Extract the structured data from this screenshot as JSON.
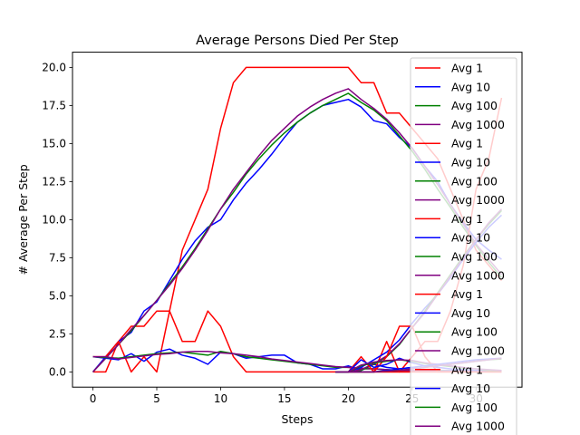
{
  "chart_data": {
    "type": "line",
    "title": "Average Persons Died Per Step",
    "xlabel": "Steps",
    "ylabel": "# Average Per Step",
    "xlim": [
      -1.6,
      33.6
    ],
    "ylim": [
      -1.0,
      21.0
    ],
    "xticks": [
      0,
      5,
      10,
      15,
      20,
      25,
      30
    ],
    "xtick_labels": [
      "0",
      "5",
      "10",
      "15",
      "20",
      "25",
      "30"
    ],
    "yticks": [
      0,
      2.5,
      5,
      7.5,
      10,
      12.5,
      15,
      17.5,
      20
    ],
    "ytick_labels": [
      "0.0",
      "2.5",
      "5.0",
      "7.5",
      "10.0",
      "12.5",
      "15.0",
      "17.5",
      "20.0"
    ],
    "grid": false,
    "legend_position": "top-right",
    "legend": [
      {
        "label": "Avg 1",
        "color": "#ff0000"
      },
      {
        "label": "Avg 10",
        "color": "#0000ff"
      },
      {
        "label": "Avg 100",
        "color": "#008000"
      },
      {
        "label": "Avg 1000",
        "color": "#800080"
      },
      {
        "label": "Avg 1",
        "color": "#ff0000"
      },
      {
        "label": "Avg 10",
        "color": "#0000ff"
      },
      {
        "label": "Avg 100",
        "color": "#008000"
      },
      {
        "label": "Avg 1000",
        "color": "#800080"
      },
      {
        "label": "Avg 1",
        "color": "#ff0000"
      },
      {
        "label": "Avg 10",
        "color": "#0000ff"
      },
      {
        "label": "Avg 100",
        "color": "#008000"
      },
      {
        "label": "Avg 1000",
        "color": "#800080"
      },
      {
        "label": "Avg 1",
        "color": "#ff0000"
      },
      {
        "label": "Avg 10",
        "color": "#0000ff"
      },
      {
        "label": "Avg 100",
        "color": "#008000"
      },
      {
        "label": "Avg 1000",
        "color": "#800080"
      },
      {
        "label": "Avg 1",
        "color": "#ff0000"
      },
      {
        "label": "Avg 10",
        "color": "#0000ff"
      },
      {
        "label": "Avg 100",
        "color": "#008000"
      },
      {
        "label": "Avg 1000",
        "color": "#800080"
      }
    ],
    "series": [
      {
        "color": "#ff0000",
        "x": [
          0,
          1,
          2,
          3,
          4,
          5,
          6,
          7,
          8,
          9,
          10,
          11,
          12,
          13,
          14,
          15,
          16,
          17,
          18,
          19,
          20,
          21,
          22,
          23,
          24,
          25,
          26,
          27,
          28,
          29,
          30,
          31,
          32
        ],
        "y": [
          0,
          0,
          2,
          3,
          3,
          4,
          4,
          8,
          10,
          12,
          16,
          19,
          20,
          20,
          20,
          20,
          20,
          20,
          20,
          20,
          20,
          19,
          19,
          17,
          17,
          16,
          15,
          14,
          12,
          10,
          8,
          7,
          6
        ]
      },
      {
        "color": "#0000ff",
        "x": [
          0,
          1,
          2,
          3,
          4,
          5,
          6,
          7,
          8,
          9,
          10,
          11,
          12,
          13,
          14,
          15,
          16,
          17,
          18,
          19,
          20,
          21,
          22,
          23,
          24,
          25,
          26,
          27,
          28,
          29,
          30,
          31,
          32
        ],
        "y": [
          0,
          1,
          2,
          2.6,
          4,
          4.6,
          6,
          7.4,
          8.6,
          9.5,
          10,
          11.3,
          12.4,
          13.3,
          14.3,
          15.4,
          16.4,
          17,
          17.5,
          17.7,
          17.9,
          17.4,
          16.5,
          16.3,
          15.4,
          14.7,
          13.5,
          12.5,
          11,
          9.8,
          8.7,
          8,
          7.4
        ]
      },
      {
        "color": "#008000",
        "x": [
          0,
          1,
          2,
          3,
          4,
          5,
          6,
          7,
          8,
          9,
          10,
          11,
          12,
          13,
          14,
          15,
          16,
          17,
          18,
          19,
          20,
          21,
          22,
          23,
          24,
          25,
          26,
          27,
          28,
          29,
          30,
          31,
          32
        ],
        "y": [
          0,
          0.9,
          1.8,
          2.7,
          3.7,
          4.7,
          5.8,
          6.9,
          8.1,
          9.4,
          10.7,
          11.8,
          13,
          14,
          14.9,
          15.7,
          16.4,
          17,
          17.5,
          17.9,
          18.3,
          17.7,
          17.2,
          16.5,
          15.5,
          14.5,
          13.3,
          12,
          10.8,
          9.5,
          8.3,
          7.2,
          6.2
        ]
      },
      {
        "color": "#800080",
        "x": [
          0,
          1,
          2,
          3,
          4,
          5,
          6,
          7,
          8,
          9,
          10,
          11,
          12,
          13,
          14,
          15,
          16,
          17,
          18,
          19,
          20,
          21,
          22,
          23,
          24,
          25,
          26,
          27,
          28,
          29,
          30,
          31,
          32
        ],
        "y": [
          0,
          0.9,
          1.8,
          2.8,
          3.7,
          4.7,
          5.7,
          6.8,
          8,
          9.3,
          10.7,
          12,
          13.1,
          14.2,
          15.2,
          16,
          16.8,
          17.4,
          17.9,
          18.3,
          18.6,
          17.9,
          17.3,
          16.6,
          15.7,
          14.7,
          13.5,
          12.3,
          11,
          9.7,
          8.4,
          7.4,
          6.4
        ]
      },
      {
        "color": "#ff0000",
        "x": [
          0,
          1,
          2,
          3,
          4,
          5,
          6,
          7,
          8,
          9,
          10,
          11,
          12,
          13,
          14,
          15,
          16,
          17,
          18,
          19,
          20,
          21,
          22,
          23,
          24,
          25,
          26,
          27,
          28,
          29,
          30,
          31,
          32
        ],
        "y": [
          1,
          1,
          2,
          0,
          1,
          0,
          4,
          2,
          2,
          4,
          3,
          1,
          0,
          0,
          0,
          0,
          0,
          0,
          0,
          0,
          0,
          0,
          0,
          0,
          0,
          0,
          0,
          0,
          0,
          0,
          0,
          0,
          0
        ]
      },
      {
        "color": "#0000ff",
        "x": [
          0,
          1,
          2,
          3,
          4,
          5,
          6,
          7,
          8,
          9,
          10,
          11,
          12,
          13,
          14,
          15,
          16,
          17,
          18,
          19,
          20,
          21,
          22,
          23,
          24,
          25,
          26,
          27,
          28,
          29,
          30,
          31,
          32
        ],
        "y": [
          1,
          0.9,
          0.8,
          1.2,
          0.7,
          1.3,
          1.5,
          1.1,
          0.9,
          0.5,
          1.3,
          1.2,
          0.9,
          1,
          1.1,
          1.1,
          0.6,
          0.5,
          0.2,
          0.2,
          0.4,
          0.1,
          0.5,
          0.3,
          0.2,
          0.3,
          0.1,
          0.1,
          0.1,
          0.1,
          0.1,
          0.1,
          0
        ]
      },
      {
        "color": "#008000",
        "x": [
          0,
          1,
          2,
          3,
          4,
          5,
          6,
          7,
          8,
          9,
          10,
          11,
          12,
          13,
          14,
          15,
          16,
          17,
          18,
          19,
          20,
          21,
          22,
          23,
          24,
          25,
          26,
          27,
          28,
          29,
          30,
          31,
          32
        ],
        "y": [
          1,
          0.95,
          0.9,
          1,
          1.1,
          1.2,
          1.25,
          1.3,
          1.2,
          1.1,
          1.35,
          1.2,
          1,
          0.9,
          0.8,
          0.7,
          0.6,
          0.5,
          0.4,
          0.3,
          0.3,
          0.2,
          0.2,
          0.15,
          0.1,
          0.1,
          0.1,
          0.1,
          0.05,
          0.05,
          0.05,
          0.05,
          0.05
        ]
      },
      {
        "color": "#800080",
        "x": [
          0,
          1,
          2,
          3,
          4,
          5,
          6,
          7,
          8,
          9,
          10,
          11,
          12,
          13,
          14,
          15,
          16,
          17,
          18,
          19,
          20,
          21,
          22,
          23,
          24,
          25,
          26,
          27,
          28,
          29,
          30,
          31,
          32
        ],
        "y": [
          1,
          1,
          0.85,
          0.95,
          1.05,
          1.15,
          1.2,
          1.3,
          1.35,
          1.35,
          1.25,
          1.2,
          1.1,
          1,
          0.85,
          0.75,
          0.65,
          0.55,
          0.45,
          0.35,
          0.3,
          0.25,
          0.2,
          0.15,
          0.1,
          0.1,
          0.1,
          0.05,
          0.05,
          0.05,
          0.05,
          0.05,
          0.05
        ]
      },
      {
        "color": "#ff0000",
        "x": [
          19,
          20,
          21,
          22,
          23,
          24,
          25,
          26,
          27,
          28,
          29,
          30,
          31,
          32
        ],
        "y": [
          0,
          0,
          0,
          0,
          2,
          0,
          1,
          2,
          2,
          4,
          7,
          12,
          14,
          18
        ]
      },
      {
        "color": "#0000ff",
        "x": [
          19,
          20,
          21,
          22,
          23,
          24,
          25,
          26,
          27,
          28,
          29,
          30,
          31,
          32
        ],
        "y": [
          0,
          0,
          0.3,
          0.8,
          1.3,
          2.1,
          3.2,
          4.2,
          5.1,
          6.2,
          7.4,
          8.5,
          9.5,
          10.3
        ]
      },
      {
        "color": "#008000",
        "x": [
          19,
          20,
          21,
          22,
          23,
          24,
          25,
          26,
          27,
          28,
          29,
          30,
          31,
          32
        ],
        "y": [
          0,
          0,
          0.1,
          0.5,
          1,
          1.8,
          2.9,
          4,
          5.2,
          6.4,
          7.6,
          8.7,
          9.7,
          10.6
        ]
      },
      {
        "color": "#800080",
        "x": [
          19,
          20,
          21,
          22,
          23,
          24,
          25,
          26,
          27,
          28,
          29,
          30,
          31,
          32
        ],
        "y": [
          0,
          0,
          0.15,
          0.55,
          1.05,
          1.85,
          2.9,
          3.9,
          5.1,
          6.3,
          7.5,
          8.7,
          9.8,
          10.7
        ]
      },
      {
        "color": "#ff0000",
        "x": [
          19,
          20,
          21,
          22,
          23,
          24,
          25,
          26,
          27,
          28,
          29,
          30,
          31,
          32
        ],
        "y": [
          0,
          0,
          1,
          0,
          1,
          3,
          3,
          1,
          0,
          0,
          0,
          0,
          0,
          0
        ]
      },
      {
        "color": "#0000ff",
        "x": [
          19,
          20,
          21,
          22,
          23,
          24,
          25,
          26,
          27,
          28,
          29,
          30,
          31,
          32
        ],
        "y": [
          0,
          0,
          0.8,
          0.3,
          0.5,
          0.9,
          0.6,
          0.4,
          0.3,
          0.2,
          0.15,
          0.1,
          0.1,
          0
        ]
      },
      {
        "color": "#008000",
        "x": [
          19,
          20,
          21,
          22,
          23,
          24,
          25,
          26,
          27,
          28,
          29,
          30,
          31,
          32
        ],
        "y": [
          0,
          0,
          0.4,
          0.6,
          0.7,
          0.8,
          0.7,
          0.55,
          0.45,
          0.35,
          0.25,
          0.2,
          0.1,
          0.1
        ]
      },
      {
        "color": "#800080",
        "x": [
          19,
          20,
          21,
          22,
          23,
          24,
          25,
          26,
          27,
          28,
          29,
          30,
          31,
          32
        ],
        "y": [
          0,
          0,
          0.45,
          0.65,
          0.75,
          0.8,
          0.75,
          0.6,
          0.5,
          0.4,
          0.3,
          0.2,
          0.15,
          0.1
        ]
      },
      {
        "color": "#ff0000",
        "x": [
          19,
          20,
          21,
          22,
          23,
          24,
          25,
          26,
          27,
          28,
          29,
          30,
          31,
          32
        ],
        "y": [
          0,
          0,
          0,
          0,
          0,
          0,
          0,
          0,
          0,
          0,
          0,
          0,
          0,
          0
        ]
      },
      {
        "color": "#0000ff",
        "x": [
          19,
          20,
          21,
          22,
          23,
          24,
          25,
          26,
          27,
          28,
          29,
          30,
          31,
          32
        ],
        "y": [
          0,
          0,
          0,
          0,
          0.1,
          0.2,
          0.3,
          0.4,
          0.5,
          0.6,
          0.7,
          0.8,
          0.85,
          0.9
        ]
      },
      {
        "color": "#008000",
        "x": [
          19,
          20,
          21,
          22,
          23,
          24,
          25,
          26,
          27,
          28,
          29,
          30,
          31,
          32
        ],
        "y": [
          0,
          0,
          0,
          0,
          0.05,
          0.1,
          0.2,
          0.3,
          0.4,
          0.5,
          0.6,
          0.7,
          0.8,
          0.85
        ]
      },
      {
        "color": "#800080",
        "x": [
          19,
          20,
          21,
          22,
          23,
          24,
          25,
          26,
          27,
          28,
          29,
          30,
          31,
          32
        ],
        "y": [
          0,
          0,
          0,
          0,
          0.05,
          0.1,
          0.2,
          0.3,
          0.4,
          0.5,
          0.6,
          0.7,
          0.8,
          0.9
        ]
      }
    ]
  }
}
